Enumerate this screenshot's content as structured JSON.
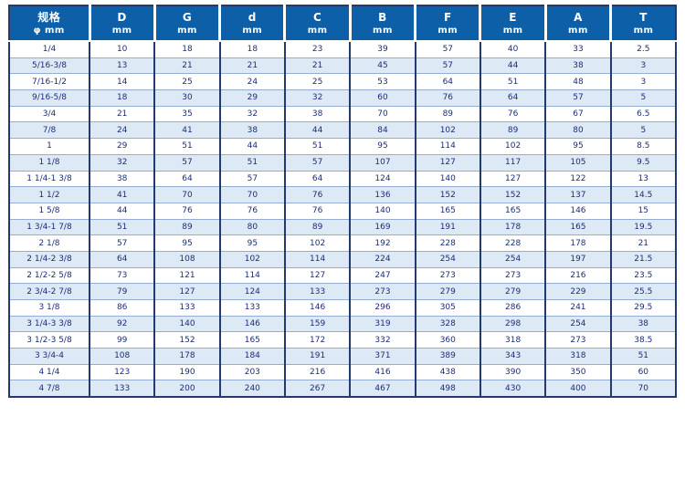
{
  "colors": {
    "header_bg": "#0d5fa8",
    "header_text": "#ffffff",
    "cell_text": "#1c2d78",
    "grid_navy": "#233a6e",
    "row_line": "#93aed0",
    "row_bg": "#ffffff",
    "row_alt_bg": "#dde9f5"
  },
  "table": {
    "columns": [
      {
        "key": "spec",
        "label": "规格",
        "unit": "φ mm"
      },
      {
        "key": "D",
        "label": "D",
        "unit": "mm"
      },
      {
        "key": "G",
        "label": "G",
        "unit": "mm"
      },
      {
        "key": "d",
        "label": "d",
        "unit": "mm"
      },
      {
        "key": "C",
        "label": "C",
        "unit": "mm"
      },
      {
        "key": "B",
        "label": "B",
        "unit": "mm"
      },
      {
        "key": "F",
        "label": "F",
        "unit": "mm"
      },
      {
        "key": "E",
        "label": "E",
        "unit": "mm"
      },
      {
        "key": "A",
        "label": "A",
        "unit": "mm"
      },
      {
        "key": "T",
        "label": "T",
        "unit": "mm"
      }
    ],
    "rows": [
      {
        "spec": "1/4",
        "values": [
          "10",
          "18",
          "18",
          "23",
          "39",
          "57",
          "40",
          "33",
          "2.5"
        ]
      },
      {
        "spec": "5/16-3/8",
        "values": [
          "13",
          "21",
          "21",
          "21",
          "45",
          "57",
          "44",
          "38",
          "3"
        ]
      },
      {
        "spec": "7/16-1/2",
        "values": [
          "14",
          "25",
          "24",
          "25",
          "53",
          "64",
          "51",
          "48",
          "3"
        ]
      },
      {
        "spec": "9/16-5/8",
        "values": [
          "18",
          "30",
          "29",
          "32",
          "60",
          "76",
          "64",
          "57",
          "5"
        ]
      },
      {
        "spec": "3/4",
        "values": [
          "21",
          "35",
          "32",
          "38",
          "70",
          "89",
          "76",
          "67",
          "6.5"
        ]
      },
      {
        "spec": "7/8",
        "values": [
          "24",
          "41",
          "38",
          "44",
          "84",
          "102",
          "89",
          "80",
          "5"
        ]
      },
      {
        "spec": "1",
        "values": [
          "29",
          "51",
          "44",
          "51",
          "95",
          "114",
          "102",
          "95",
          "8.5"
        ]
      },
      {
        "spec": "1 1/8",
        "values": [
          "32",
          "57",
          "51",
          "57",
          "107",
          "127",
          "117",
          "105",
          "9.5"
        ]
      },
      {
        "spec": "1 1/4-1 3/8",
        "values": [
          "38",
          "64",
          "57",
          "64",
          "124",
          "140",
          "127",
          "122",
          "13"
        ]
      },
      {
        "spec": "1 1/2",
        "values": [
          "41",
          "70",
          "70",
          "76",
          "136",
          "152",
          "152",
          "137",
          "14.5"
        ]
      },
      {
        "spec": "1 5/8",
        "values": [
          "44",
          "76",
          "76",
          "76",
          "140",
          "165",
          "165",
          "146",
          "15"
        ]
      },
      {
        "spec": "1 3/4-1 7/8",
        "values": [
          "51",
          "89",
          "80",
          "89",
          "169",
          "191",
          "178",
          "165",
          "19.5"
        ]
      },
      {
        "spec": "2 1/8",
        "values": [
          "57",
          "95",
          "95",
          "102",
          "192",
          "228",
          "228",
          "178",
          "21"
        ]
      },
      {
        "spec": "2 1/4-2 3/8",
        "values": [
          "64",
          "108",
          "102",
          "114",
          "224",
          "254",
          "254",
          "197",
          "21.5"
        ]
      },
      {
        "spec": "2 1/2-2 5/8",
        "values": [
          "73",
          "121",
          "114",
          "127",
          "247",
          "273",
          "273",
          "216",
          "23.5"
        ]
      },
      {
        "spec": "2 3/4-2 7/8",
        "values": [
          "79",
          "127",
          "124",
          "133",
          "273",
          "279",
          "279",
          "229",
          "25.5"
        ]
      },
      {
        "spec": "3 1/8",
        "values": [
          "86",
          "133",
          "133",
          "146",
          "296",
          "305",
          "286",
          "241",
          "29.5"
        ]
      },
      {
        "spec": "3 1/4-3 3/8",
        "values": [
          "92",
          "140",
          "146",
          "159",
          "319",
          "328",
          "298",
          "254",
          "38"
        ]
      },
      {
        "spec": "3 1/2-3 5/8",
        "values": [
          "99",
          "152",
          "165",
          "172",
          "332",
          "360",
          "318",
          "273",
          "38.5"
        ]
      },
      {
        "spec": "3 3/4-4",
        "values": [
          "108",
          "178",
          "184",
          "191",
          "371",
          "389",
          "343",
          "318",
          "51"
        ]
      },
      {
        "spec": "4 1/4",
        "values": [
          "123",
          "190",
          "203",
          "216",
          "416",
          "438",
          "390",
          "350",
          "60"
        ]
      },
      {
        "spec": "4 7/8",
        "values": [
          "133",
          "200",
          "240",
          "267",
          "467",
          "498",
          "430",
          "400",
          "70"
        ]
      }
    ]
  }
}
